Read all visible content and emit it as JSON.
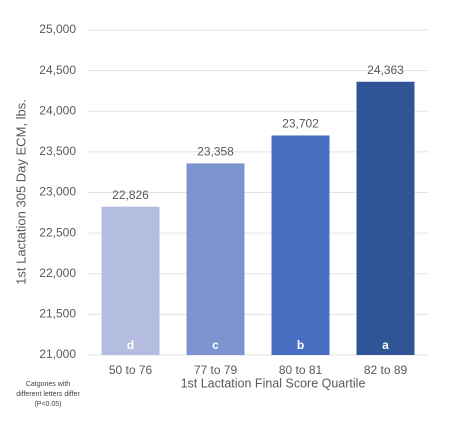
{
  "chart_data": {
    "type": "bar",
    "y_label": "1st Lactation 305 Day ECM, lbs.",
    "x_label": "1st Lactation Final Score Quartile",
    "categories": [
      "50 to 76",
      "77 to 79",
      "80 to 81",
      "82 to 89"
    ],
    "values": [
      22826,
      23358,
      23702,
      24363
    ],
    "value_labels": [
      "22,826",
      "23,358",
      "23,702",
      "24,363"
    ],
    "letters": [
      "d",
      "c",
      "b",
      "a"
    ],
    "colors": [
      "#b4bde0",
      "#7b93cf",
      "#4a6fc2",
      "#2f5597"
    ],
    "footnote": [
      "Catgories with",
      "different letters differ",
      "(P<0.05)"
    ],
    "ylim": [
      21000,
      25000
    ],
    "yticks": [
      {
        "value": 21000,
        "label": "21,000"
      },
      {
        "value": 21500,
        "label": "21,500"
      },
      {
        "value": 22000,
        "label": "22,000"
      },
      {
        "value": 22500,
        "label": "22,500"
      },
      {
        "value": 23000,
        "label": "23,000"
      },
      {
        "value": 23500,
        "label": "23,500"
      },
      {
        "value": 24000,
        "label": "24,000"
      },
      {
        "value": 24500,
        "label": "24,500"
      },
      {
        "value": 25000,
        "label": "25,000"
      }
    ],
    "grid": true
  }
}
